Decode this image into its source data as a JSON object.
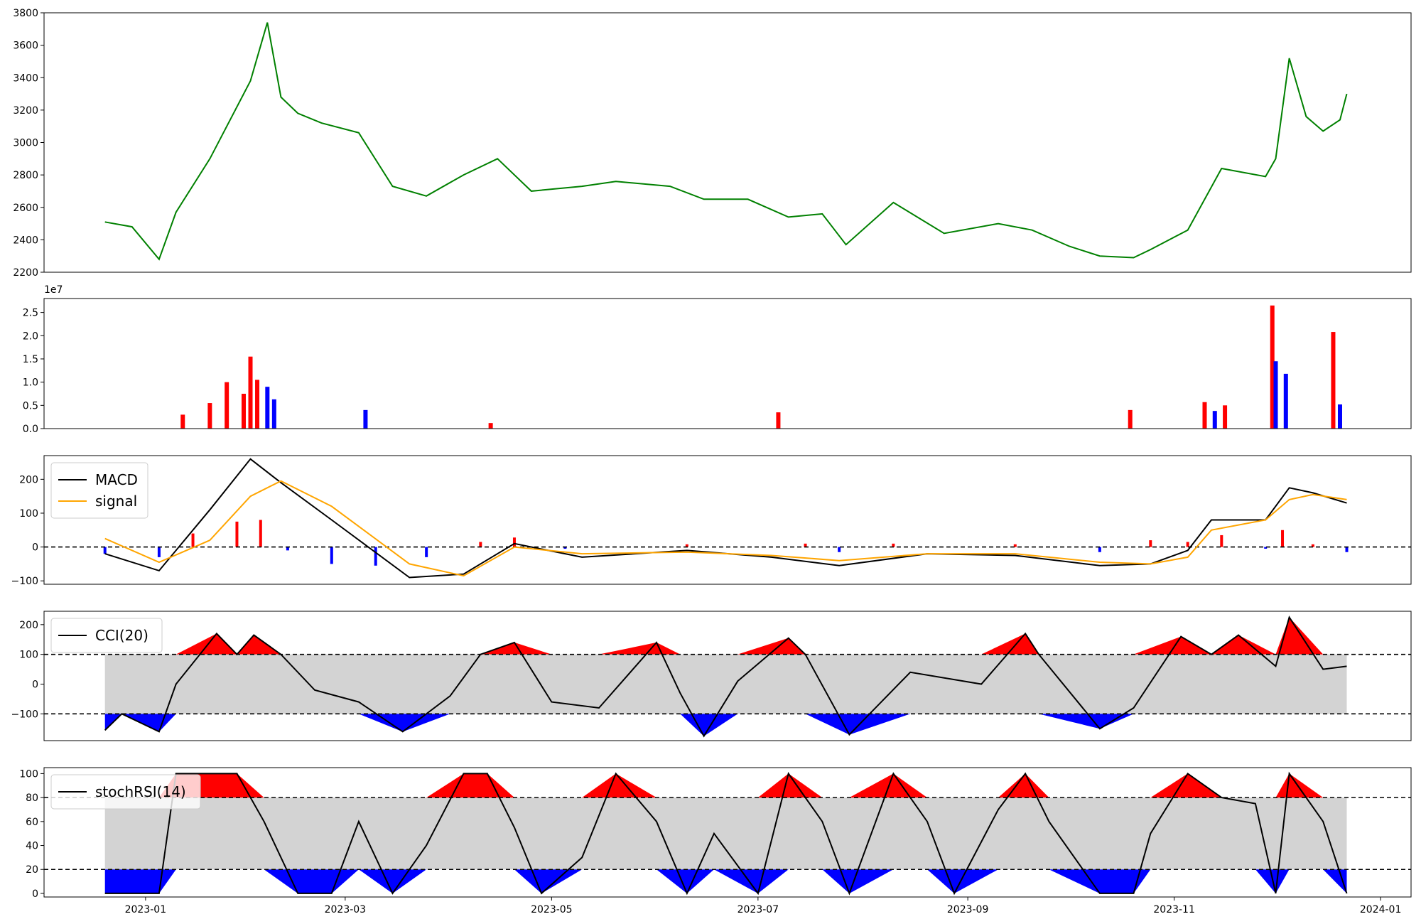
{
  "chart_data": [
    {
      "type": "line",
      "panel": "price",
      "ylim": [
        2200,
        3800
      ],
      "yticks": [
        "2200",
        "2400",
        "2600",
        "2800",
        "3000",
        "3200",
        "3400",
        "3600",
        "3800"
      ],
      "x": [
        "2022-12-20",
        "2022-12-28",
        "2023-01-05",
        "2023-01-10",
        "2023-01-20",
        "2023-02-01",
        "2023-02-06",
        "2023-02-10",
        "2023-02-15",
        "2023-02-22",
        "2023-03-05",
        "2023-03-15",
        "2023-03-25",
        "2023-04-05",
        "2023-04-15",
        "2023-04-25",
        "2023-05-10",
        "2023-05-20",
        "2023-06-05",
        "2023-06-15",
        "2023-06-28",
        "2023-07-10",
        "2023-07-20",
        "2023-07-27",
        "2023-08-10",
        "2023-08-25",
        "2023-09-10",
        "2023-09-20",
        "2023-10-01",
        "2023-10-10",
        "2023-10-20",
        "2023-10-25",
        "2023-11-05",
        "2023-11-15",
        "2023-11-28",
        "2023-12-01",
        "2023-12-05",
        "2023-12-10",
        "2023-12-15",
        "2023-12-20",
        "2023-12-22"
      ],
      "series": [
        {
          "color": "#008000",
          "values": [
            2510,
            2480,
            2280,
            2570,
            2900,
            3380,
            3740,
            3280,
            3180,
            3120,
            3060,
            2730,
            2670,
            2800,
            2900,
            2700,
            2730,
            2760,
            2730,
            2650,
            2650,
            2540,
            2560,
            2370,
            2630,
            2440,
            2500,
            2460,
            2360,
            2300,
            2290,
            2340,
            2460,
            2840,
            2790,
            2900,
            3520,
            3160,
            3070,
            3140,
            3300
          ]
        }
      ]
    },
    {
      "type": "bar",
      "panel": "volume",
      "scale_label": "1e7",
      "ylim": [
        0,
        2.8
      ],
      "yticks": [
        "0.0",
        "0.5",
        "1.0",
        "1.5",
        "2.0",
        "2.5"
      ],
      "x": [
        "2023-01-12",
        "2023-01-20",
        "2023-01-25",
        "2023-01-30",
        "2023-02-01",
        "2023-02-03",
        "2023-02-06",
        "2023-02-08",
        "2023-03-07",
        "2023-04-13",
        "2023-07-07",
        "2023-10-19",
        "2023-11-10",
        "2023-11-13",
        "2023-11-16",
        "2023-11-30",
        "2023-12-01",
        "2023-12-04",
        "2023-12-18",
        "2023-12-20"
      ],
      "values": [
        0.3,
        0.55,
        1.0,
        0.75,
        1.55,
        1.05,
        0.9,
        0.63,
        0.4,
        0.12,
        0.35,
        0.4,
        0.57,
        0.38,
        0.5,
        2.65,
        1.45,
        1.18,
        2.08,
        0.52
      ],
      "colors": [
        "red",
        "red",
        "red",
        "red",
        "red",
        "red",
        "blue",
        "blue",
        "blue",
        "red",
        "red",
        "red",
        "red",
        "blue",
        "red",
        "red",
        "blue",
        "blue",
        "red",
        "blue"
      ]
    },
    {
      "type": "line",
      "panel": "macd",
      "ylim": [
        -110,
        270
      ],
      "yticks": [
        "−100",
        "0",
        "100",
        "200"
      ],
      "reference_lines": [
        0
      ],
      "legend": [
        "MACD",
        "signal"
      ],
      "x": [
        "2022-12-20",
        "2023-01-05",
        "2023-01-20",
        "2023-02-01",
        "2023-02-10",
        "2023-02-25",
        "2023-03-20",
        "2023-04-05",
        "2023-04-20",
        "2023-05-10",
        "2023-06-10",
        "2023-07-05",
        "2023-07-25",
        "2023-08-20",
        "2023-09-15",
        "2023-10-10",
        "2023-10-25",
        "2023-11-05",
        "2023-11-12",
        "2023-11-28",
        "2023-12-05",
        "2023-12-12",
        "2023-12-22"
      ],
      "series": [
        {
          "name": "MACD",
          "color": "#000000",
          "values": [
            -20,
            -70,
            110,
            260,
            190,
            80,
            -90,
            -80,
            10,
            -30,
            -10,
            -30,
            -55,
            -20,
            -25,
            -55,
            -50,
            -10,
            80,
            80,
            175,
            160,
            130
          ]
        },
        {
          "name": "signal",
          "color": "#ffa500",
          "values": [
            25,
            -45,
            20,
            150,
            195,
            120,
            -50,
            -85,
            0,
            -20,
            -15,
            -25,
            -40,
            -20,
            -20,
            -45,
            -50,
            -30,
            50,
            80,
            140,
            155,
            140
          ]
        }
      ],
      "histogram": {
        "x": [
          "2022-12-20",
          "2023-01-05",
          "2023-01-15",
          "2023-01-28",
          "2023-02-04",
          "2023-02-12",
          "2023-02-25",
          "2023-03-10",
          "2023-03-25",
          "2023-04-10",
          "2023-04-20",
          "2023-05-05",
          "2023-06-10",
          "2023-07-15",
          "2023-07-25",
          "2023-08-10",
          "2023-09-15",
          "2023-10-10",
          "2023-10-25",
          "2023-11-05",
          "2023-11-15",
          "2023-11-28",
          "2023-12-03",
          "2023-12-12",
          "2023-12-22"
        ],
        "values": [
          -20,
          -30,
          40,
          75,
          80,
          -10,
          -50,
          -55,
          -30,
          15,
          28,
          -5,
          8,
          10,
          -15,
          10,
          8,
          -15,
          20,
          15,
          35,
          -5,
          50,
          8,
          -15
        ],
        "colors": [
          "blue",
          "blue",
          "red",
          "red",
          "red",
          "blue",
          "blue",
          "blue",
          "blue",
          "red",
          "red",
          "blue",
          "red",
          "red",
          "blue",
          "red",
          "red",
          "blue",
          "red",
          "red",
          "red",
          "blue",
          "red",
          "red",
          "blue"
        ]
      }
    },
    {
      "type": "area",
      "panel": "cci",
      "ylim": [
        -190,
        245
      ],
      "yticks": [
        "−100",
        "0",
        "100",
        "200"
      ],
      "reference_lines": [
        -100,
        100
      ],
      "band": [
        -100,
        100
      ],
      "legend": [
        "CCI(20)"
      ],
      "x": [
        "2022-12-20",
        "2022-12-25",
        "2023-01-05",
        "2023-01-10",
        "2023-01-22",
        "2023-01-28",
        "2023-02-02",
        "2023-02-10",
        "2023-02-20",
        "2023-03-05",
        "2023-03-18",
        "2023-04-01",
        "2023-04-10",
        "2023-04-20",
        "2023-05-01",
        "2023-05-15",
        "2023-06-01",
        "2023-06-08",
        "2023-06-15",
        "2023-06-25",
        "2023-07-10",
        "2023-07-15",
        "2023-07-28",
        "2023-08-15",
        "2023-09-05",
        "2023-09-18",
        "2023-09-22",
        "2023-10-10",
        "2023-10-20",
        "2023-11-03",
        "2023-11-12",
        "2023-11-20",
        "2023-12-01",
        "2023-12-05",
        "2023-12-15",
        "2023-12-22"
      ],
      "series": [
        {
          "name": "CCI(20)",
          "color": "#000000",
          "values": [
            -155,
            -100,
            -160,
            0,
            170,
            100,
            165,
            100,
            -20,
            -60,
            -160,
            -40,
            100,
            140,
            -60,
            -80,
            140,
            -30,
            -175,
            10,
            155,
            100,
            -170,
            40,
            0,
            170,
            100,
            -150,
            -80,
            160,
            100,
            165,
            60,
            225,
            50,
            60
          ]
        }
      ]
    },
    {
      "type": "area",
      "panel": "stochrsi",
      "ylim": [
        -3,
        105
      ],
      "yticks": [
        "0",
        "20",
        "40",
        "60",
        "80",
        "100"
      ],
      "reference_lines": [
        20,
        80
      ],
      "band": [
        20,
        80
      ],
      "legend": [
        "stochRSI(14)"
      ],
      "x": [
        "2022-12-20",
        "2023-01-05",
        "2023-01-10",
        "2023-01-20",
        "2023-01-28",
        "2023-02-05",
        "2023-02-15",
        "2023-02-25",
        "2023-03-05",
        "2023-03-15",
        "2023-03-25",
        "2023-04-05",
        "2023-04-12",
        "2023-04-20",
        "2023-04-28",
        "2023-05-10",
        "2023-05-20",
        "2023-06-01",
        "2023-06-10",
        "2023-06-18",
        "2023-07-01",
        "2023-07-10",
        "2023-07-20",
        "2023-07-28",
        "2023-08-10",
        "2023-08-20",
        "2023-08-28",
        "2023-09-10",
        "2023-09-18",
        "2023-09-25",
        "2023-10-10",
        "2023-10-20",
        "2023-10-25",
        "2023-11-05",
        "2023-11-15",
        "2023-11-25",
        "2023-12-01",
        "2023-12-05",
        "2023-12-15",
        "2023-12-22"
      ],
      "series": [
        {
          "name": "stochRSI(14)",
          "color": "#000000",
          "values": [
            0,
            0,
            100,
            100,
            100,
            60,
            0,
            0,
            60,
            0,
            40,
            100,
            100,
            55,
            0,
            30,
            100,
            60,
            0,
            50,
            0,
            100,
            60,
            0,
            100,
            60,
            0,
            70,
            100,
            60,
            0,
            0,
            50,
            100,
            80,
            75,
            0,
            100,
            60,
            0
          ]
        }
      ]
    }
  ]
}
